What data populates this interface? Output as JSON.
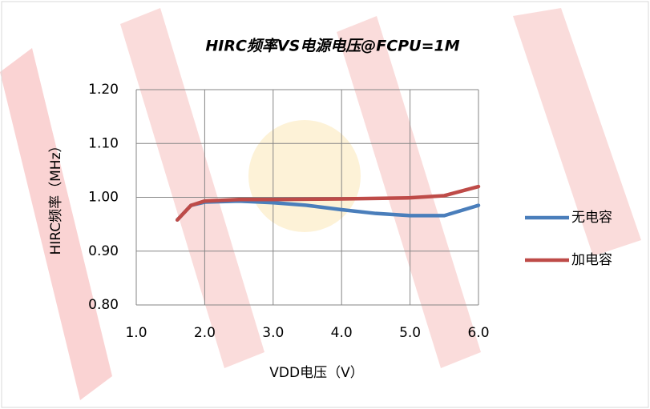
{
  "chart_data": {
    "type": "line",
    "title": "HIRC频率VS电源电压@FCPU=1M",
    "x_label": "VDD电压（V）",
    "y_label": "HIRC频率（MHz）",
    "xlim": [
      1.0,
      6.0
    ],
    "xticks": [
      {
        "value": 1,
        "label": "1.0"
      },
      {
        "value": 2,
        "label": "2.0"
      },
      {
        "value": 3,
        "label": "3.0"
      },
      {
        "value": 4,
        "label": "4.0"
      },
      {
        "value": 5,
        "label": "5.0"
      },
      {
        "value": 6,
        "label": "6.0"
      }
    ],
    "ylim": [
      0.8,
      1.2
    ],
    "yticks": [
      {
        "value": 0.8,
        "label": "0.80"
      },
      {
        "value": 0.9,
        "label": "0.90"
      },
      {
        "value": 1,
        "label": "1.00"
      },
      {
        "value": 1.1,
        "label": "1.10"
      },
      {
        "value": 1.2,
        "label": "1.20"
      }
    ],
    "grid": true,
    "legend": "right",
    "series": [
      {
        "name": "无电容",
        "color": "#4a7ebb",
        "x": [
          1.6,
          1.8,
          2.0,
          2.5,
          3.0,
          3.5,
          4.0,
          4.5,
          5.0,
          5.5,
          6.0
        ],
        "values": [
          0.958,
          0.985,
          0.991,
          0.993,
          0.99,
          0.985,
          0.977,
          0.97,
          0.966,
          0.966,
          0.985
        ]
      },
      {
        "name": "加电容",
        "color": "#be4b48",
        "x": [
          1.6,
          1.8,
          2.0,
          2.5,
          3.0,
          4.0,
          4.5,
          5.0,
          5.5,
          6.0
        ],
        "values": [
          0.958,
          0.985,
          0.993,
          0.996,
          0.996,
          0.997,
          0.998,
          0.999,
          1.003,
          1.02
        ]
      }
    ]
  }
}
